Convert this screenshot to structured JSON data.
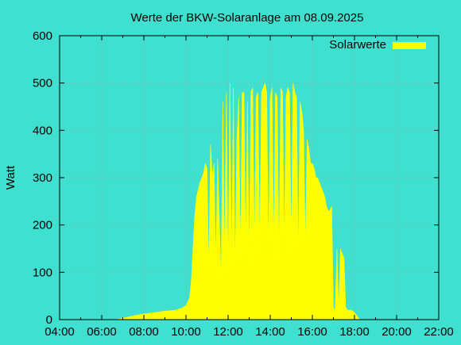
{
  "chart_data": {
    "type": "area",
    "title": "Werte der BKW-Solaranlage am 08.09.2025",
    "ylabel": "Watt",
    "xlabel": "",
    "series": [
      {
        "name": "Solarwerte",
        "color": "#ffff00",
        "x": [
          "06:40",
          "07:00",
          "07:30",
          "08:00",
          "08:30",
          "09:00",
          "09:30",
          "09:50",
          "10:00",
          "10:10",
          "10:15",
          "10:20",
          "10:25",
          "10:30",
          "10:40",
          "10:50",
          "10:55",
          "11:00",
          "11:05",
          "11:10",
          "11:15",
          "11:20",
          "11:25",
          "11:30",
          "11:40",
          "11:45",
          "11:50",
          "11:55",
          "12:00",
          "12:05",
          "12:10",
          "12:15",
          "12:20",
          "12:25",
          "12:30",
          "12:35",
          "12:40",
          "12:45",
          "12:50",
          "12:55",
          "13:00",
          "13:05",
          "13:10",
          "13:15",
          "13:20",
          "13:25",
          "13:30",
          "13:35",
          "13:40",
          "13:45",
          "13:50",
          "13:55",
          "14:00",
          "14:05",
          "14:10",
          "14:15",
          "14:20",
          "14:25",
          "14:30",
          "14:35",
          "14:40",
          "14:45",
          "14:50",
          "14:55",
          "15:00",
          "15:05",
          "15:10",
          "15:15",
          "15:20",
          "15:25",
          "15:30",
          "15:35",
          "15:40",
          "15:45",
          "15:50",
          "15:55",
          "16:00",
          "16:05",
          "16:10",
          "16:15",
          "16:20",
          "16:25",
          "16:30",
          "16:35",
          "16:40",
          "16:45",
          "16:50",
          "16:55",
          "17:00",
          "17:05",
          "17:10",
          "17:15",
          "17:20",
          "17:25",
          "17:30",
          "17:35",
          "17:40",
          "17:45",
          "17:50",
          "17:55",
          "18:00",
          "18:05",
          "18:10",
          "18:15",
          "18:20",
          "18:30",
          "18:40",
          "18:50",
          "19:00",
          "19:10",
          "19:20"
        ],
        "y": [
          0,
          3,
          8,
          12,
          15,
          18,
          20,
          25,
          30,
          45,
          80,
          150,
          220,
          260,
          290,
          310,
          330,
          320,
          100,
          370,
          300,
          330,
          120,
          340,
          80,
          460,
          120,
          480,
          100,
          500,
          120,
          490,
          100,
          380,
          470,
          130,
          480,
          480,
          150,
          460,
          120,
          480,
          490,
          150,
          470,
          480,
          150,
          480,
          490,
          500,
          480,
          140,
          470,
          490,
          150,
          480,
          470,
          130,
          490,
          480,
          150,
          470,
          490,
          480,
          150,
          500,
          480,
          470,
          130,
          460,
          440,
          400,
          150,
          380,
          360,
          330,
          330,
          320,
          300,
          300,
          290,
          280,
          270,
          260,
          240,
          230,
          230,
          240,
          25,
          20,
          150,
          20,
          150,
          140,
          130,
          25,
          20,
          20,
          20,
          18,
          15,
          10,
          5,
          0,
          0,
          0,
          0,
          0,
          0,
          0,
          0
        ]
      }
    ],
    "xlim": [
      "04:00",
      "22:00"
    ],
    "ylim": [
      0,
      600
    ],
    "xticks": [
      "04:00",
      "06:00",
      "08:00",
      "10:00",
      "12:00",
      "14:00",
      "16:00",
      "18:00",
      "20:00",
      "22:00"
    ],
    "yticks": [
      0,
      100,
      200,
      300,
      400,
      500,
      600
    ],
    "grid": true,
    "legend": "top-right"
  }
}
